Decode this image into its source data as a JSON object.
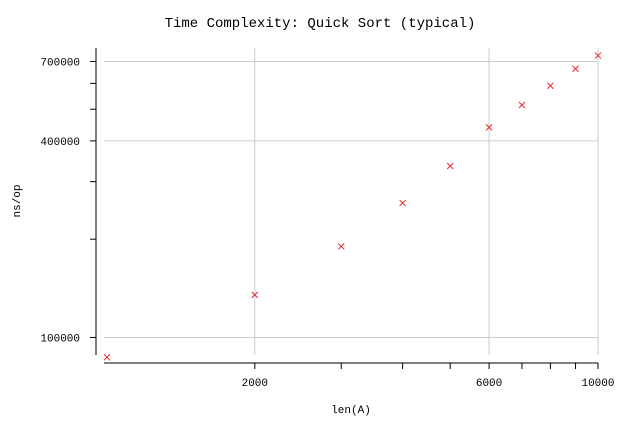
{
  "chart_data": {
    "type": "scatter",
    "title": "Time Complexity: Quick Sort (typical)",
    "xlabel": "len(A)",
    "ylabel": "ns/op",
    "x_scale": "log",
    "y_scale": "log",
    "xlim": [
      1000,
      10000
    ],
    "ylim": [
      89000,
      770000
    ],
    "x_ticks": [
      2000,
      6000,
      10000
    ],
    "y_ticks": [
      100000,
      400000,
      700000
    ],
    "x_tick_labels": [
      "2000",
      "6000",
      "10000"
    ],
    "y_tick_labels": [
      "100000",
      "400000",
      "700000"
    ],
    "grid": true,
    "marker": "x",
    "color": "#e8262c",
    "points": [
      {
        "x": 1000,
        "y": 87000
      },
      {
        "x": 2000,
        "y": 135000
      },
      {
        "x": 3000,
        "y": 190000
      },
      {
        "x": 4000,
        "y": 258000
      },
      {
        "x": 5000,
        "y": 335000
      },
      {
        "x": 6000,
        "y": 440000
      },
      {
        "x": 7000,
        "y": 515000
      },
      {
        "x": 8000,
        "y": 590000
      },
      {
        "x": 9000,
        "y": 665000
      },
      {
        "x": 10000,
        "y": 730000
      }
    ]
  }
}
